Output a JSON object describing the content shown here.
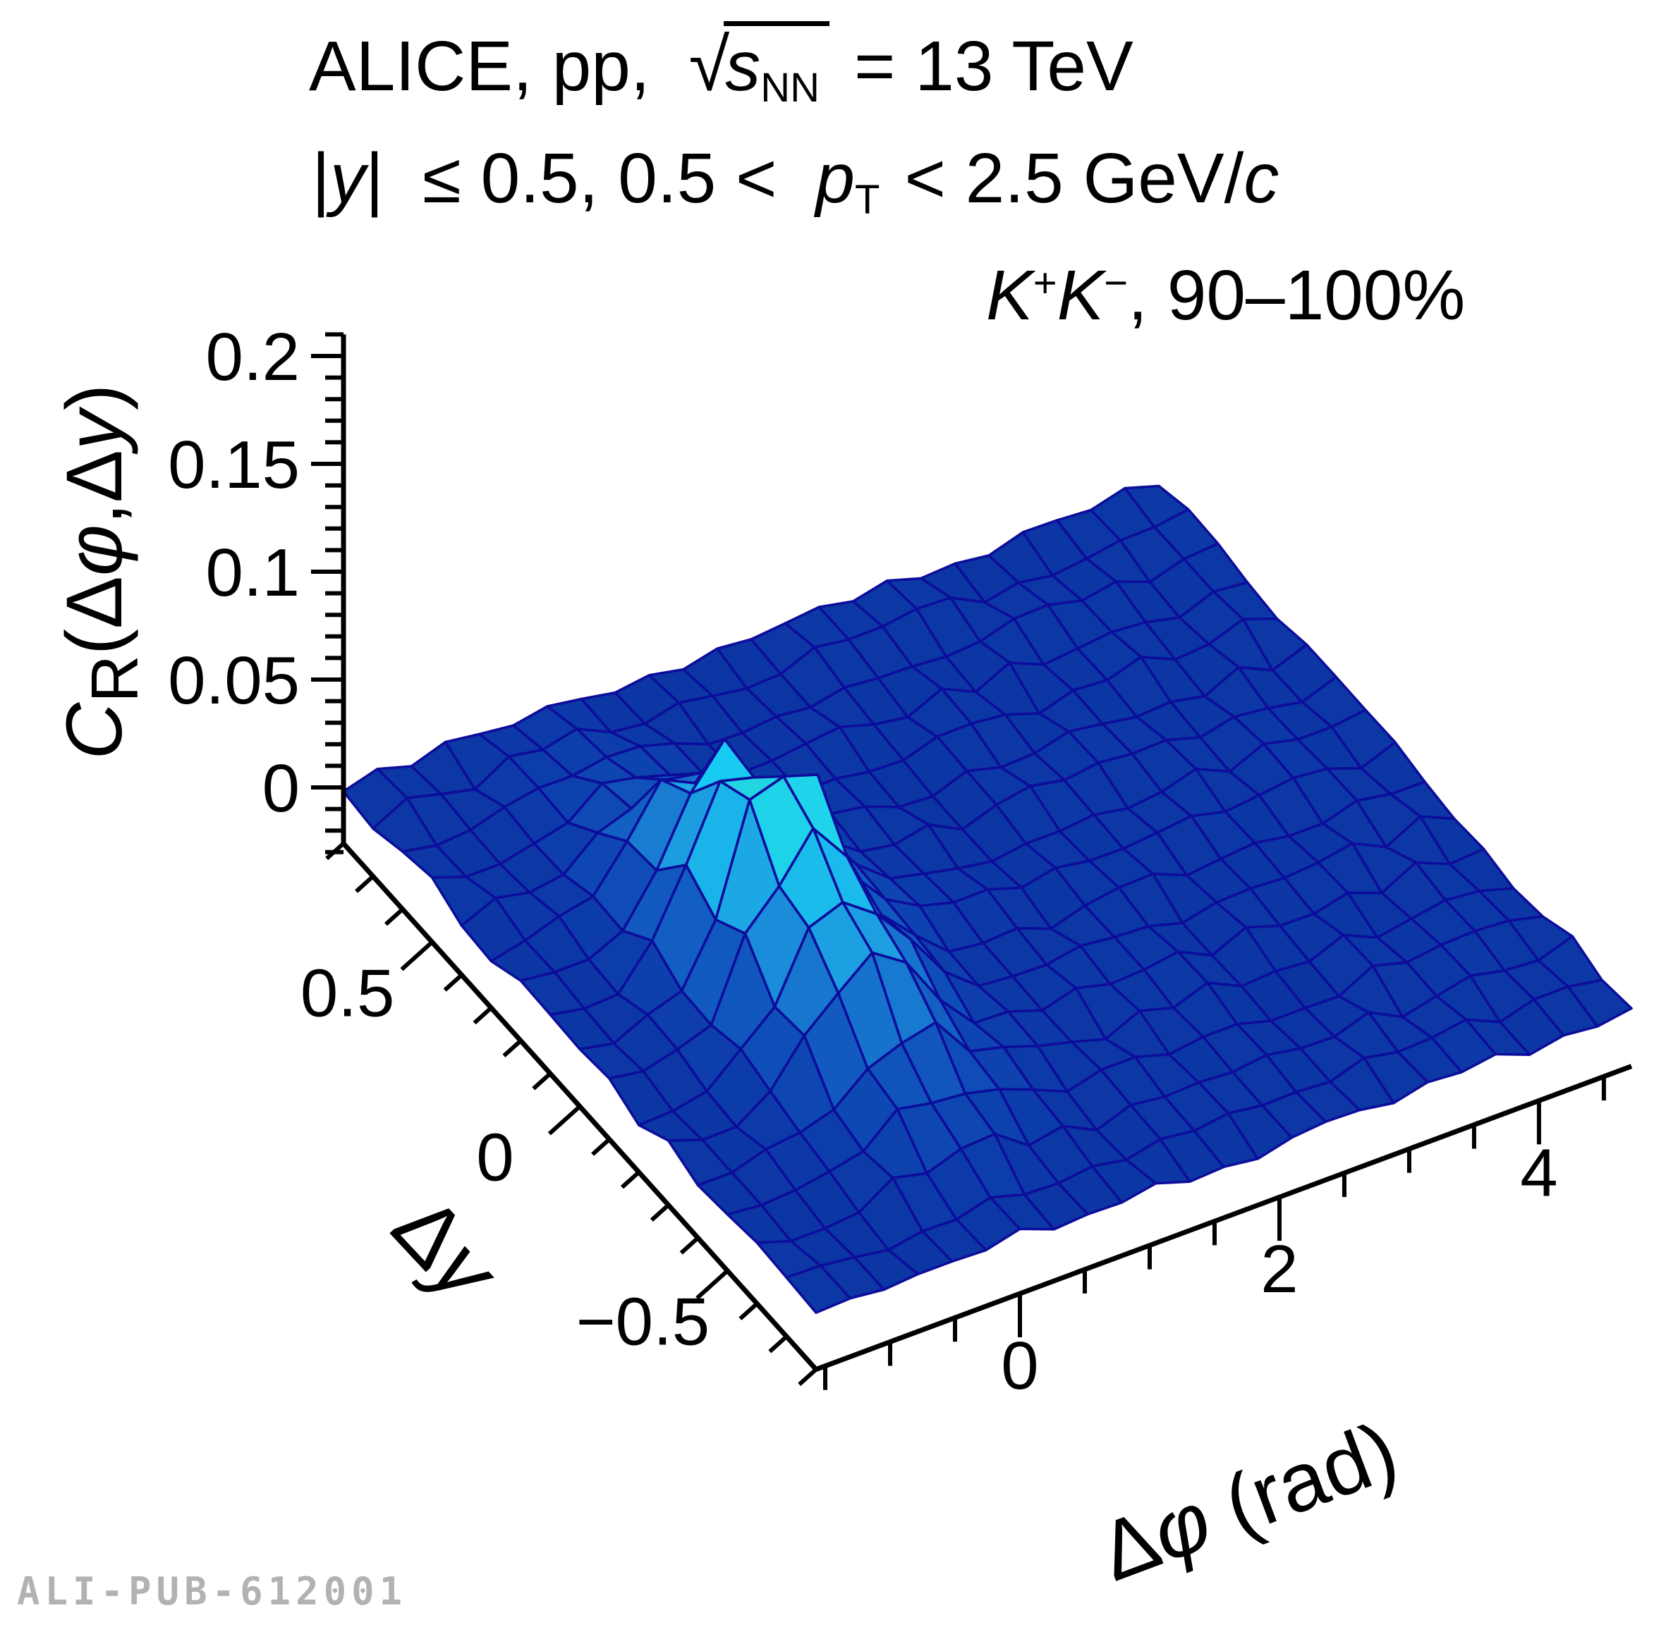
{
  "header": {
    "line1": {
      "pre": "ALICE, pp,",
      "radical": "√",
      "s": "s",
      "s_sub": "NN",
      "post": "= 13 TeV"
    },
    "line2": {
      "bar1": "|",
      "y": "y",
      "bar2": "|",
      "mid": "≤ 0.5, 0.5 <",
      "p": "p",
      "p_sub": "T",
      "post": "< 2.5 GeV/",
      "c": "c"
    },
    "line3": {
      "k1": "K",
      "k1_sup": "+",
      "k2": "K",
      "k2_sup": "−",
      "post": ", 90–100%"
    }
  },
  "axes": {
    "z": {
      "title_c": "C",
      "title_sub": "R",
      "open": "(",
      "delta1": "Δ",
      "phi": "φ",
      "comma": ",",
      "delta2": "Δ",
      "yvar": "y",
      "close": ")",
      "ticks": [
        {
          "value": 0,
          "label": "0"
        },
        {
          "value": 0.05,
          "label": "0.05"
        },
        {
          "value": 0.1,
          "label": "0.1"
        },
        {
          "value": 0.15,
          "label": "0.15"
        },
        {
          "value": 0.2,
          "label": "0.2"
        }
      ],
      "minor_step": 0.01,
      "display_range": [
        -0.026,
        0.21
      ]
    },
    "dy": {
      "title_delta": "Δ",
      "title_var": "y",
      "ticks": [
        {
          "value": 0.5,
          "label": "0.5"
        },
        {
          "value": 0,
          "label": "0"
        },
        {
          "value": -0.5,
          "label": "−0.5"
        }
      ],
      "minor_step": 0.1,
      "range": [
        0.8,
        -0.8
      ]
    },
    "dphi": {
      "title_delta": "Δ",
      "title_var": "φ",
      "title_unit": " (rad)",
      "ticks": [
        {
          "value": 0,
          "label": "0"
        },
        {
          "value": 2,
          "label": "2"
        },
        {
          "value": 4,
          "label": "4"
        }
      ],
      "minor_step": 0.5,
      "range": [
        -1.5708,
        4.7124
      ]
    }
  },
  "chart_data": {
    "type": "surface",
    "title": "ALICE, pp, √s_NN = 13 TeV, |y| ≤ 0.5, 0.5 < p_T < 2.5 GeV/c, K+K−, 90–100%",
    "x_axis": {
      "label": "Δφ (rad)",
      "range": [
        -1.5708,
        4.7124
      ],
      "ticks": [
        0,
        2,
        4
      ],
      "bins": 24
    },
    "y_axis": {
      "label": "Δy",
      "range": [
        -0.8,
        0.8
      ],
      "ticks": [
        -0.5,
        0,
        0.5
      ],
      "bins": 16
    },
    "z_axis": {
      "label": "C_R(Δφ,Δy)",
      "ticks": [
        0,
        0.05,
        0.1,
        0.15,
        0.2
      ],
      "display_range": [
        -0.026,
        0.21
      ]
    },
    "baseline": 0.0,
    "peak": {
      "x": 0.0,
      "y": 0.0,
      "amplitude": 0.092,
      "sigma_x": 0.42,
      "sigma_y": 0.28
    },
    "noise": {
      "amplitude": 0.0045,
      "peak_extra_factor": 2.0,
      "seed": 12
    },
    "surface_base_color": "#0a2f9e",
    "mesh_line_color": "#0d0d9b",
    "colormap": [
      {
        "t": 0.0,
        "color": "#0a2d99"
      },
      {
        "t": 0.15,
        "color": "#0c3aa8"
      },
      {
        "t": 0.3,
        "color": "#0f4db8"
      },
      {
        "t": 0.45,
        "color": "#156ac9"
      },
      {
        "t": 0.58,
        "color": "#1b8cd9"
      },
      {
        "t": 0.7,
        "color": "#1cb0e8"
      },
      {
        "t": 0.82,
        "color": "#17c9f1"
      },
      {
        "t": 0.91,
        "color": "#1fd4e9"
      },
      {
        "t": 1.0,
        "color": "#36dac0"
      }
    ]
  },
  "footer": {
    "watermark": "ALI-PUB-612001"
  }
}
